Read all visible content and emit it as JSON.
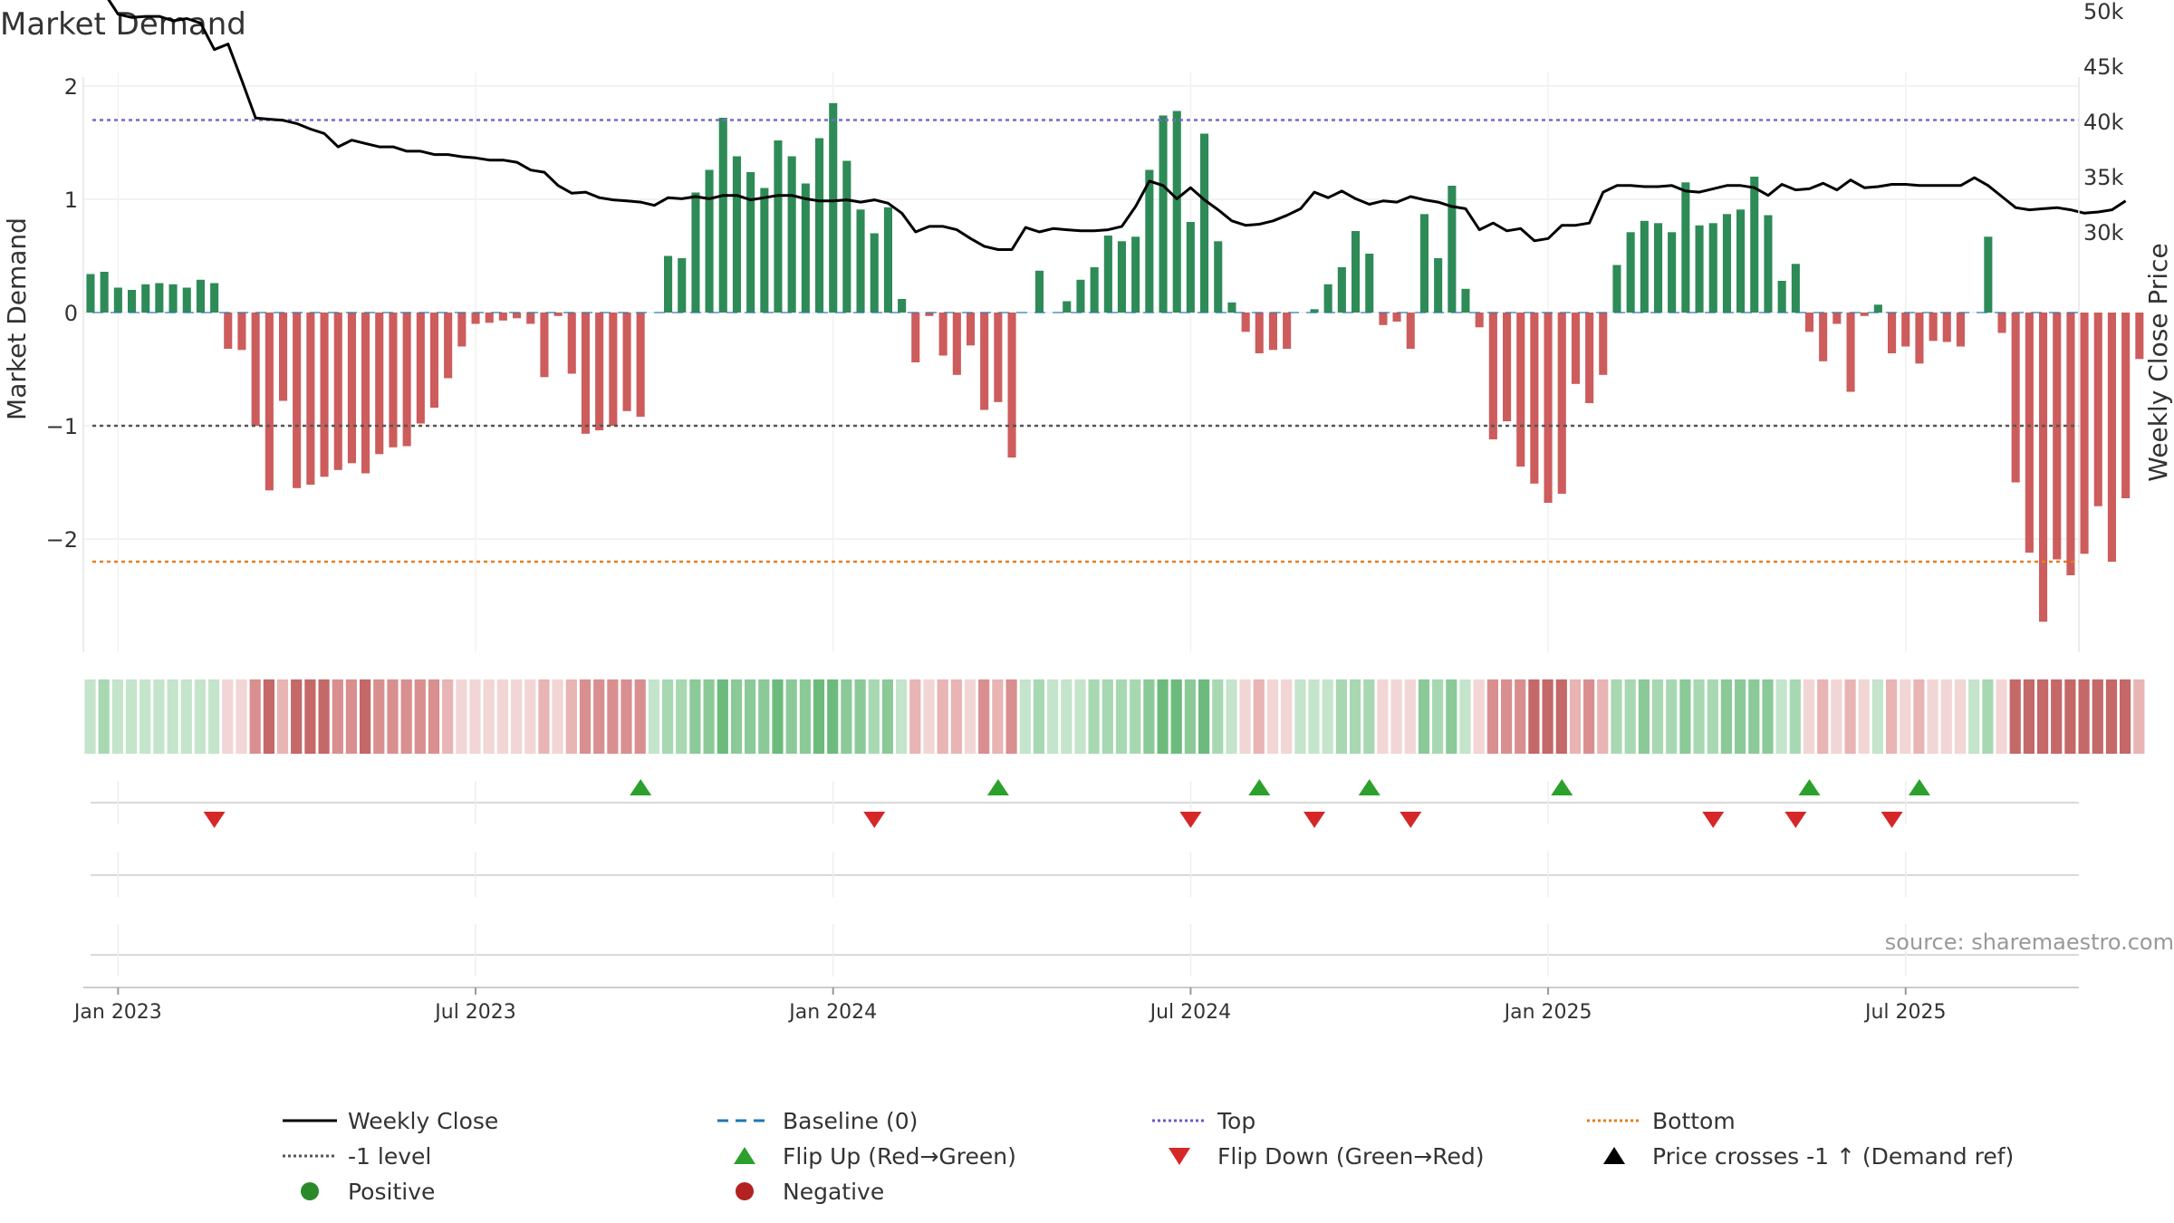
{
  "chart_data": {
    "type": "bar",
    "title": "Market Demand",
    "ylabel_left": "Market Demand",
    "ylabel_right": "Weekly Close Price",
    "source": "source: sharemaestro.com",
    "ylim_left": [
      -2.9,
      2.0
    ],
    "ylim_right": [
      27000,
      53000
    ],
    "left_ticks": [
      {
        "v": 2,
        "label": "2"
      },
      {
        "v": 1,
        "label": "1"
      },
      {
        "v": 0,
        "label": "0"
      },
      {
        "v": -1,
        "label": "−1"
      },
      {
        "v": -2,
        "label": "−2"
      }
    ],
    "right_ticks": [
      {
        "v": 50000,
        "label": "50k"
      },
      {
        "v": 45000,
        "label": "45k"
      },
      {
        "v": 40000,
        "label": "40k"
      },
      {
        "v": 35000,
        "label": "35k"
      },
      {
        "v": 30000,
        "label": "30k"
      }
    ],
    "x_ticks": [
      {
        "week": 2,
        "label": "Jan 2023"
      },
      {
        "week": 28,
        "label": "Jul 2023"
      },
      {
        "week": 54,
        "label": "Jan 2024"
      },
      {
        "week": 80,
        "label": "Jul 2024"
      },
      {
        "week": 106,
        "label": "Jan 2025"
      },
      {
        "week": 132,
        "label": "Jul 2025"
      }
    ],
    "start_week": 0,
    "top_level": 1.7,
    "bottom_level": -2.2,
    "minus1_level": -1,
    "demand": [
      0.34,
      0.36,
      0.22,
      0.2,
      0.25,
      0.26,
      0.25,
      0.22,
      0.29,
      0.26,
      -0.32,
      -0.33,
      -1.0,
      -1.57,
      -0.78,
      -1.55,
      -1.52,
      -1.45,
      -1.39,
      -1.33,
      -1.42,
      -1.25,
      -1.19,
      -1.18,
      -0.98,
      -0.84,
      -0.58,
      -0.3,
      -0.1,
      -0.09,
      -0.07,
      -0.05,
      -0.1,
      -0.57,
      -0.03,
      -0.54,
      -1.07,
      -1.04,
      -1.0,
      -0.87,
      -0.92,
      0.0,
      0.5,
      0.48,
      1.06,
      1.26,
      1.72,
      1.38,
      1.24,
      1.1,
      1.52,
      1.38,
      1.14,
      1.54,
      1.85,
      1.34,
      0.91,
      0.7,
      0.93,
      0.12,
      -0.44,
      -0.03,
      -0.38,
      -0.55,
      -0.29,
      -0.86,
      -0.79,
      -1.28,
      0.0,
      0.37,
      0.0,
      0.1,
      0.29,
      0.4,
      0.68,
      0.63,
      0.67,
      1.26,
      1.74,
      1.78,
      0.8,
      1.58,
      0.63,
      0.09,
      -0.17,
      -0.36,
      -0.33,
      -0.32,
      0.0,
      0.03,
      0.25,
      0.4,
      0.72,
      0.52,
      -0.11,
      -0.08,
      -0.32,
      0.87,
      0.48,
      1.12,
      0.21,
      -0.13,
      -1.12,
      -0.96,
      -1.36,
      -1.51,
      -1.68,
      -1.6,
      -0.63,
      -0.8,
      -0.55,
      0.42,
      0.71,
      0.81,
      0.79,
      0.71,
      1.15,
      0.77,
      0.79,
      0.87,
      0.91,
      1.2,
      0.86,
      0.28,
      0.43,
      -0.17,
      -0.43,
      -0.1,
      -0.7,
      -0.03,
      0.07,
      -0.36,
      -0.3,
      -0.45,
      -0.25,
      -0.26,
      -0.3,
      0.0,
      0.67,
      -0.18,
      -1.5,
      -2.12,
      -2.73,
      -2.18,
      -2.32,
      -2.13,
      -1.71,
      -2.2,
      -1.64,
      -0.41
    ],
    "weekly_close": [
      52200,
      51600,
      49700,
      49400,
      49500,
      49500,
      49100,
      49300,
      48900,
      46500,
      47000,
      43700,
      40300,
      40200,
      40100,
      39800,
      39300,
      38900,
      37700,
      38300,
      38000,
      37700,
      37700,
      37300,
      37300,
      37000,
      37000,
      36800,
      36700,
      36500,
      36500,
      36300,
      35600,
      35400,
      34200,
      33500,
      33600,
      33100,
      32900,
      32800,
      32700,
      32400,
      33100,
      33000,
      33200,
      33000,
      33300,
      33300,
      32900,
      33100,
      33300,
      33300,
      33000,
      32800,
      32800,
      32900,
      32700,
      32900,
      32600,
      31700,
      30000,
      30500,
      30500,
      30200,
      29400,
      28700,
      28400,
      28400,
      30400,
      30000,
      30300,
      30200,
      30100,
      30100,
      30200,
      30500,
      32300,
      34600,
      34200,
      33000,
      34000,
      32900,
      32000,
      31000,
      30600,
      30700,
      31000,
      31500,
      32100,
      33600,
      33100,
      33700,
      33000,
      32500,
      32800,
      32700,
      33200,
      32900,
      32700,
      32300,
      32100,
      30200,
      30800,
      30100,
      30300,
      29200,
      29400,
      30600,
      30600,
      30800,
      33600,
      34200,
      34200,
      34100,
      34100,
      34200,
      33700,
      33600,
      33900,
      34200,
      34200,
      34000,
      33300,
      34300,
      33800,
      33900,
      34400,
      33800,
      34700,
      34000,
      34100,
      34300,
      34300,
      34200,
      34200,
      34200,
      34200,
      34900,
      34200,
      33200,
      32200,
      32000,
      32100,
      32200,
      32000,
      31700,
      31800,
      32000,
      32800
    ],
    "flips_up": [
      40,
      66,
      85,
      93,
      107,
      125,
      133
    ],
    "flips_down": [
      9,
      57,
      80,
      89,
      96,
      118,
      124,
      131
    ],
    "legend": [
      {
        "label": "Weekly Close",
        "kind": "line",
        "color": "#000000",
        "dash": ""
      },
      {
        "label": "Baseline (0)",
        "kind": "line",
        "color": "#1f77b4",
        "dash": "12 8"
      },
      {
        "label": "Top",
        "kind": "line",
        "color": "#6a5acd",
        "dash": "3 3"
      },
      {
        "label": "Bottom",
        "kind": "line",
        "color": "#e67e22",
        "dash": "3 3"
      },
      {
        "label": "-1 level",
        "kind": "line",
        "color": "#555555",
        "dash": "3 3"
      },
      {
        "label": "Flip Up (Red→Green)",
        "kind": "tri-up",
        "color": "#2ca02c",
        "dash": ""
      },
      {
        "label": "Flip Down (Green→Red)",
        "kind": "tri-down",
        "color": "#d62728",
        "dash": ""
      },
      {
        "label": "Price crosses -1 ↑ (Demand ref)",
        "kind": "tri-up",
        "color": "#000000",
        "dash": ""
      },
      {
        "label": "Positive",
        "kind": "dot",
        "color": "#2a8a2a",
        "dash": ""
      },
      {
        "label": "Negative",
        "kind": "dot",
        "color": "#b22222",
        "dash": ""
      }
    ],
    "colors": {
      "positive": "#2e8b57",
      "negative": "#cd5c5c",
      "close": "#000000",
      "baseline": "#1f77b4",
      "top": "#7b68c9",
      "bottom": "#e67e22",
      "minus1": "#555555",
      "flip_up": "#2ca02c",
      "flip_down": "#d62728"
    }
  }
}
